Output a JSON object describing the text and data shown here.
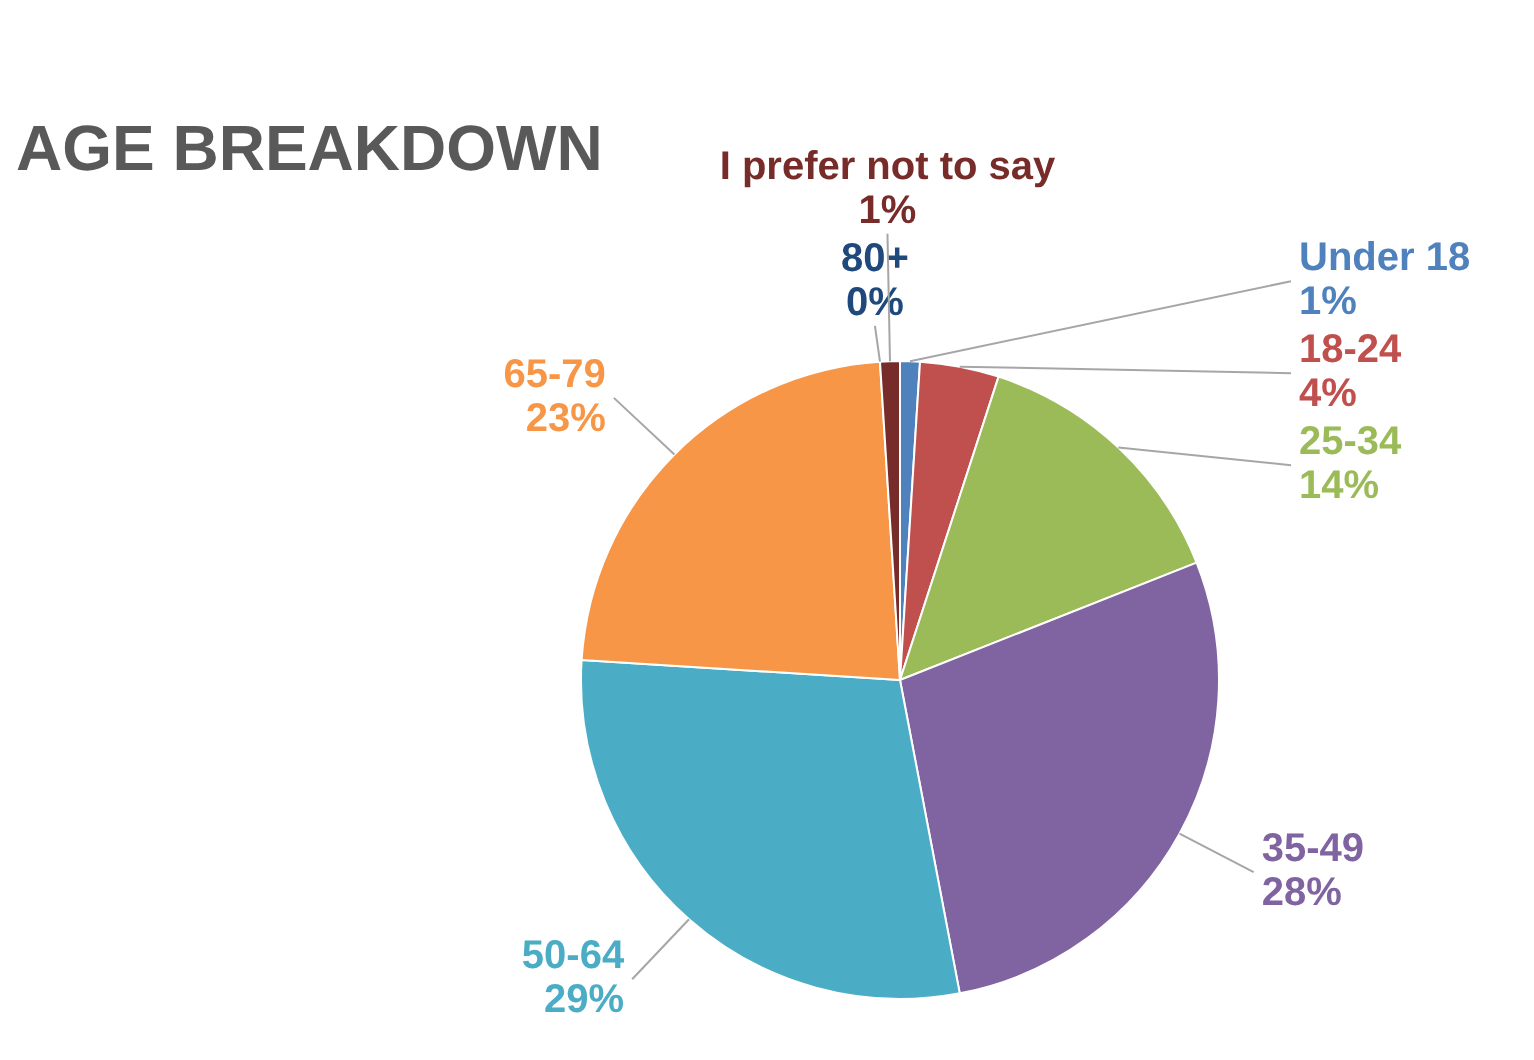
{
  "chart_data": {
    "type": "pie",
    "title": "AGE BREAKDOWN",
    "categories": [
      "Under 18",
      "18-24",
      "25-34",
      "35-49",
      "50-64",
      "65-79",
      "80+",
      "I prefer not to say"
    ],
    "values": [
      1,
      4,
      14,
      28,
      29,
      23,
      0,
      1
    ],
    "value_labels": [
      "1%",
      "4%",
      "14%",
      "28%",
      "29%",
      "23%",
      "0%",
      "1%"
    ],
    "colors": [
      "#4f81bd",
      "#c0504d",
      "#9bbb59",
      "#8064a2",
      "#4bacc6",
      "#f79646",
      "#1f497d",
      "#772c2a"
    ]
  }
}
